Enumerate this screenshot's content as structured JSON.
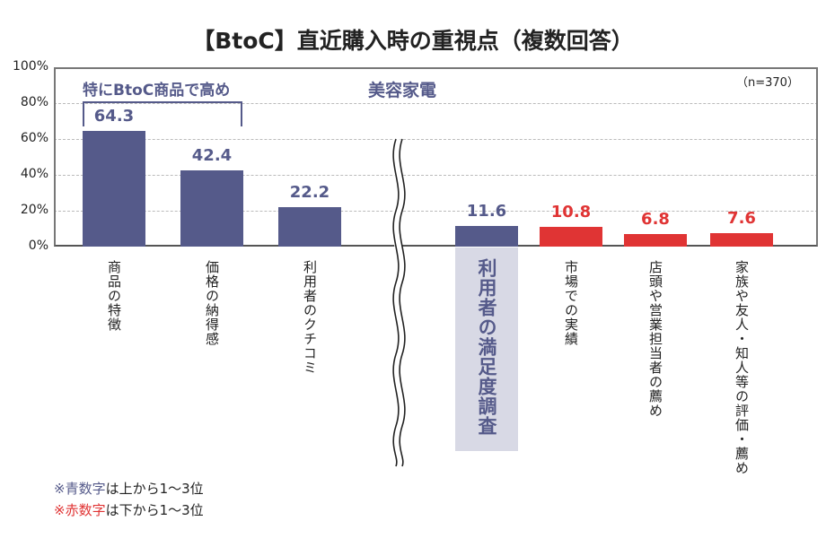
{
  "chart_data": {
    "type": "bar",
    "title": "【BtoC】直近購入時の重視点（複数回答）",
    "sample": "（n=370）",
    "section_label": "美容家電",
    "bracket_label": "特にBtoC商品で高め",
    "ylim": [
      0,
      100
    ],
    "yticks": [
      "0%",
      "20%",
      "40%",
      "60%",
      "80%",
      "100%"
    ],
    "grid": true,
    "axis_break": true,
    "categories": [
      "商品の特徴",
      "価格の納得感",
      "利用者のクチコミ",
      "利用者の満足度調査",
      "市場での実績",
      "店頭や営業担当者の薦め",
      "家族や友人・知人等の評価・薦め"
    ],
    "values": [
      64.3,
      42.4,
      22.2,
      11.6,
      10.8,
      6.8,
      7.6
    ],
    "value_labels": [
      "64.3",
      "42.4",
      "22.2",
      "11.6",
      "10.8",
      "6.8",
      "7.6"
    ],
    "highlighted_category": "利用者の満足度調査",
    "colors": {
      "blue": "#555a8a",
      "red": "#e03434",
      "highlight_bg": "#d8d9e5"
    },
    "bar_colors": [
      "blue",
      "blue",
      "blue",
      "blue",
      "red",
      "red",
      "red"
    ]
  },
  "notes": [
    {
      "mark": "※",
      "colored": "青数字",
      "rest": "は上から1〜3位",
      "color": "#555a8a"
    },
    {
      "mark": "※",
      "colored": "赤数字",
      "rest": "は下から1〜3位",
      "color": "#e03434"
    }
  ]
}
